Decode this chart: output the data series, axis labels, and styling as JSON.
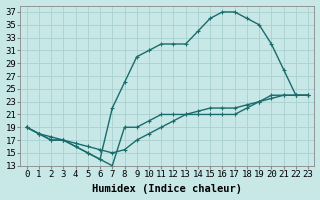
{
  "xlabel": "Humidex (Indice chaleur)",
  "background_color": "#c8e8e8",
  "grid_color": "#a8d0d0",
  "line_color": "#1a6b6b",
  "xlim": [
    -0.5,
    23.5
  ],
  "ylim": [
    13,
    38
  ],
  "yticks": [
    13,
    15,
    17,
    19,
    21,
    23,
    25,
    27,
    29,
    31,
    33,
    35,
    37
  ],
  "xticks": [
    0,
    1,
    2,
    3,
    4,
    5,
    6,
    7,
    8,
    9,
    10,
    11,
    12,
    13,
    14,
    15,
    16,
    17,
    18,
    19,
    20,
    21,
    22,
    23
  ],
  "line1_x": [
    0,
    1,
    2,
    3,
    4,
    5,
    6,
    7,
    8,
    9,
    10,
    11,
    12,
    13,
    14,
    15,
    16,
    17,
    18,
    19,
    20,
    21,
    22,
    23
  ],
  "line1_y": [
    19,
    18,
    17.5,
    17,
    16.5,
    16,
    15.5,
    15,
    15.5,
    17,
    18,
    19,
    20,
    21,
    21.5,
    22,
    22,
    22,
    22.5,
    23,
    23.5,
    24,
    24,
    24
  ],
  "line2_x": [
    0,
    1,
    2,
    3,
    4,
    5,
    6,
    7,
    8,
    9,
    10,
    11,
    12,
    13,
    14,
    15,
    16,
    17,
    18,
    19,
    20,
    21,
    22,
    23
  ],
  "line2_y": [
    19,
    18,
    17,
    17,
    16,
    15,
    14,
    13,
    19,
    19,
    20,
    21,
    21,
    21,
    21,
    21,
    21,
    21,
    22,
    23,
    24,
    24,
    24,
    24
  ],
  "line3_x": [
    0,
    1,
    2,
    3,
    4,
    5,
    6,
    7,
    8,
    9,
    10,
    11,
    12,
    13,
    14,
    15,
    16,
    17,
    18,
    19,
    20,
    21,
    22,
    23
  ],
  "line3_y": [
    19,
    18,
    17,
    17,
    16,
    15,
    14,
    22,
    26,
    30,
    31,
    32,
    32,
    32,
    34,
    36,
    37,
    37,
    36,
    35,
    32,
    28,
    24,
    24
  ],
  "marker_size": 3,
  "line_width": 1.0,
  "font_size_xlabel": 7.5,
  "font_size_ticks": 6.5
}
